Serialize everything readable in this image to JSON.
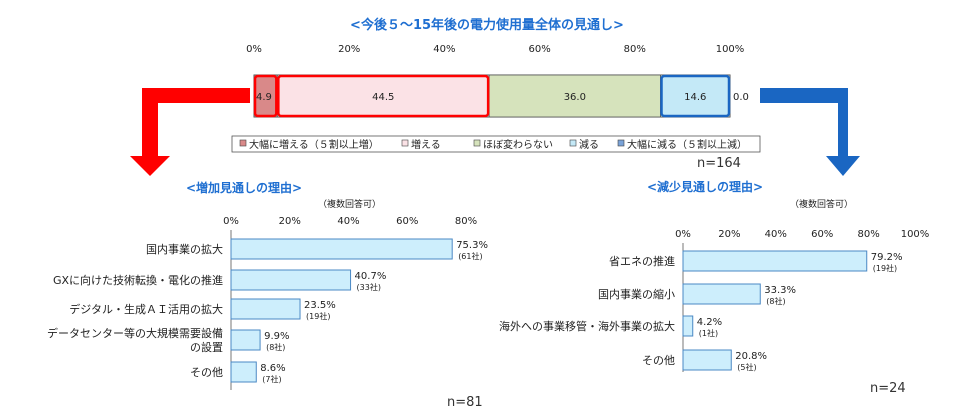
{
  "colors": {
    "title": "#1f6fd1",
    "bar_fill": "#cdeefc",
    "bar_stroke": "#4a88c4",
    "arrow_red": "#ff0000",
    "arrow_blue": "#1a66c2"
  },
  "chart_data": [
    {
      "type": "bar",
      "orientation": "horizontal-stacked-100",
      "title": "<今後５～15年後の電力使用量全体の見通し>",
      "axis_ticks": [
        "0%",
        "20%",
        "40%",
        "60%",
        "80%",
        "100%"
      ],
      "xlim": [
        0,
        100
      ],
      "series": [
        {
          "name": "大幅に増える（５割以上増）",
          "value": 4.9,
          "label": "4.9",
          "color": "#d98989",
          "highlight": "#ff0000"
        },
        {
          "name": "増える",
          "value": 44.5,
          "label": "44.5",
          "color": "#fbe2e6",
          "highlight": "#ff0000"
        },
        {
          "name": "ほぼ変わらない",
          "value": 36.0,
          "label": "36.0",
          "color": "#d6e3bc",
          "highlight": ""
        },
        {
          "name": "減る",
          "value": 14.6,
          "label": "14.6",
          "color": "#c4e9f7",
          "highlight": "#1a66c2"
        },
        {
          "name": "大幅に減る（５割以上減）",
          "value": 0.0,
          "label": "0.0",
          "color": "#7aa3d8",
          "highlight": ""
        }
      ],
      "n_label": "n=164"
    },
    {
      "type": "bar",
      "orientation": "horizontal",
      "title": "<増加見通しの理由>",
      "note": "（複数回答可）",
      "axis_ticks": [
        "0%",
        "20%",
        "40%",
        "60%",
        "80%"
      ],
      "xlim": [
        0,
        80
      ],
      "categories": [
        "国内事業の拡大",
        "GXに向けた技術転換・電化の推進",
        "デジタル・生成ＡＩ活用の拡大",
        "データセンター等の大規模需要設備の設置",
        "その他"
      ],
      "category_lines": [
        [
          "国内事業の拡大"
        ],
        [
          "GXに向けた技術転換・電化の推進"
        ],
        [
          "デジタル・生成ＡＩ活用の拡大"
        ],
        [
          "データセンター等の大規模需要設備",
          "の設置"
        ],
        [
          "その他"
        ]
      ],
      "values": [
        75.3,
        40.7,
        23.5,
        9.9,
        8.6
      ],
      "value_labels": [
        "75.3%",
        "40.7%",
        "23.5%",
        "9.9%",
        "8.6%"
      ],
      "count_labels": [
        "(61社)",
        "(33社)",
        "(19社)",
        "(8社)",
        "(7社)"
      ],
      "n_label": "n=81"
    },
    {
      "type": "bar",
      "orientation": "horizontal",
      "title": "<減少見通しの理由>",
      "note": "（複数回答可）",
      "axis_ticks": [
        "0%",
        "20%",
        "40%",
        "60%",
        "80%",
        "100%"
      ],
      "xlim": [
        0,
        100
      ],
      "categories": [
        "省エネの推進",
        "国内事業の縮小",
        "海外への事業移管・海外事業の拡大",
        "その他"
      ],
      "category_lines": [
        [
          "省エネの推進"
        ],
        [
          "国内事業の縮小"
        ],
        [
          "海外への事業移管・海外事業の拡大"
        ],
        [
          "その他"
        ]
      ],
      "values": [
        79.2,
        33.3,
        4.2,
        20.8
      ],
      "value_labels": [
        "79.2%",
        "33.3%",
        "4.2%",
        "20.8%"
      ],
      "count_labels": [
        "(19社)",
        "(8社)",
        "(1社)",
        "(5社)"
      ],
      "n_label": "n=24"
    }
  ]
}
